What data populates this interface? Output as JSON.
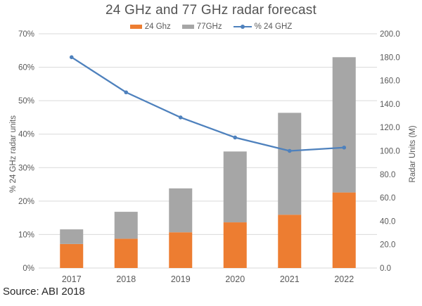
{
  "source": "Source: ABI 2018",
  "chart_data": {
    "type": "bar",
    "subtype": "stacked-bars-with-line",
    "title": "24 GHz and 77 GHz radar forecast",
    "categories": [
      "2017",
      "2018",
      "2019",
      "2020",
      "2021",
      "2022"
    ],
    "bar_series": [
      {
        "name": "24 Ghz",
        "color": "#ED7D31",
        "axis": "right",
        "values": [
          20.5,
          25,
          30.5,
          39,
          45.5,
          64.5
        ]
      },
      {
        "name": "77GHz",
        "color": "#A6A6A6",
        "axis": "right",
        "values": [
          12.5,
          23,
          37.5,
          60.5,
          87,
          115.5
        ]
      }
    ],
    "bar_totals": [
      33,
      48,
      68,
      99.5,
      132.5,
      180
    ],
    "line_series": {
      "name": "% 24 GHZ",
      "color": "#4E81BD",
      "axis": "left",
      "values": [
        63,
        52.5,
        45,
        39,
        35,
        36
      ]
    },
    "left_axis": {
      "label": "% 24 GHz radar units",
      "min": 0,
      "max": 70,
      "step": 10,
      "ticks": [
        "0%",
        "10%",
        "20%",
        "30%",
        "40%",
        "50%",
        "60%",
        "70%"
      ]
    },
    "right_axis": {
      "label": "Radar Units (M)",
      "min": 0,
      "max": 200,
      "step": 20,
      "ticks": [
        "0.0",
        "20.0",
        "40.0",
        "60.0",
        "80.0",
        "100.0",
        "120.0",
        "140.0",
        "160.0",
        "180.0",
        "200.0"
      ]
    },
    "grid": "horizontal",
    "gridline_color": "#D9D9D9",
    "tick_label_color": "#595959",
    "legend_position": "top",
    "stacked": true
  }
}
